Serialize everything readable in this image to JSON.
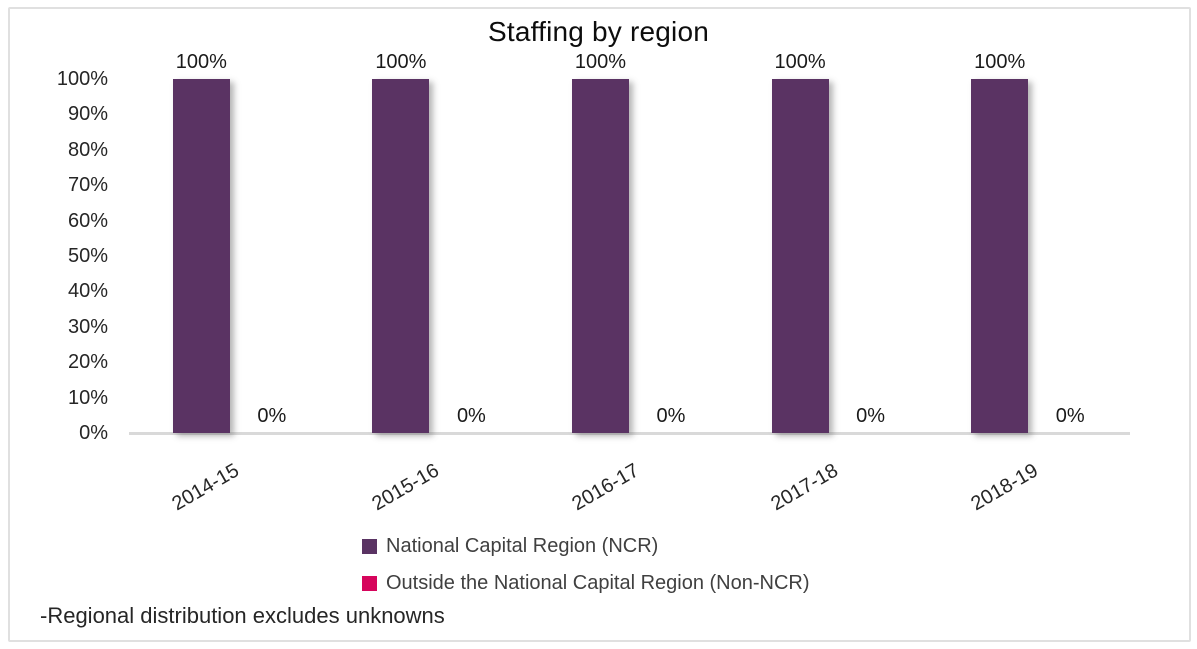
{
  "chart_data": {
    "type": "bar",
    "title": "Staffing by region",
    "categories": [
      "2014-15",
      "2015-16",
      "2016-17",
      "2017-18",
      "2018-19"
    ],
    "series": [
      {
        "name": "National Capital Region (NCR)",
        "color": "#5A3363",
        "values": [
          100,
          100,
          100,
          100,
          100
        ],
        "data_labels": [
          "100%",
          "100%",
          "100%",
          "100%",
          "100%"
        ]
      },
      {
        "name": "Outside the National Capital Region (Non-NCR)",
        "color": "#D6055C",
        "values": [
          0,
          0,
          0,
          0,
          0
        ],
        "data_labels": [
          "0%",
          "0%",
          "0%",
          "0%",
          "0%"
        ]
      }
    ],
    "xlabel": "",
    "ylabel": "",
    "ylim": [
      0,
      100
    ],
    "ytick_step": 10,
    "ytick_labels": [
      "0%",
      "10%",
      "20%",
      "30%",
      "40%",
      "50%",
      "60%",
      "70%",
      "80%",
      "90%",
      "100%"
    ],
    "grid": false,
    "legend_position": "bottom-left"
  },
  "footnote": "-Regional distribution excludes unknowns",
  "colors": {
    "bar_ncr": "#5A3363",
    "bar_non_ncr": "#D6055C",
    "axis_line": "#D9D9D9",
    "frame_border": "#E0E0E0",
    "title_text": "#0d0d0d",
    "axis_text": "#262626",
    "legend_text": "#404040"
  }
}
